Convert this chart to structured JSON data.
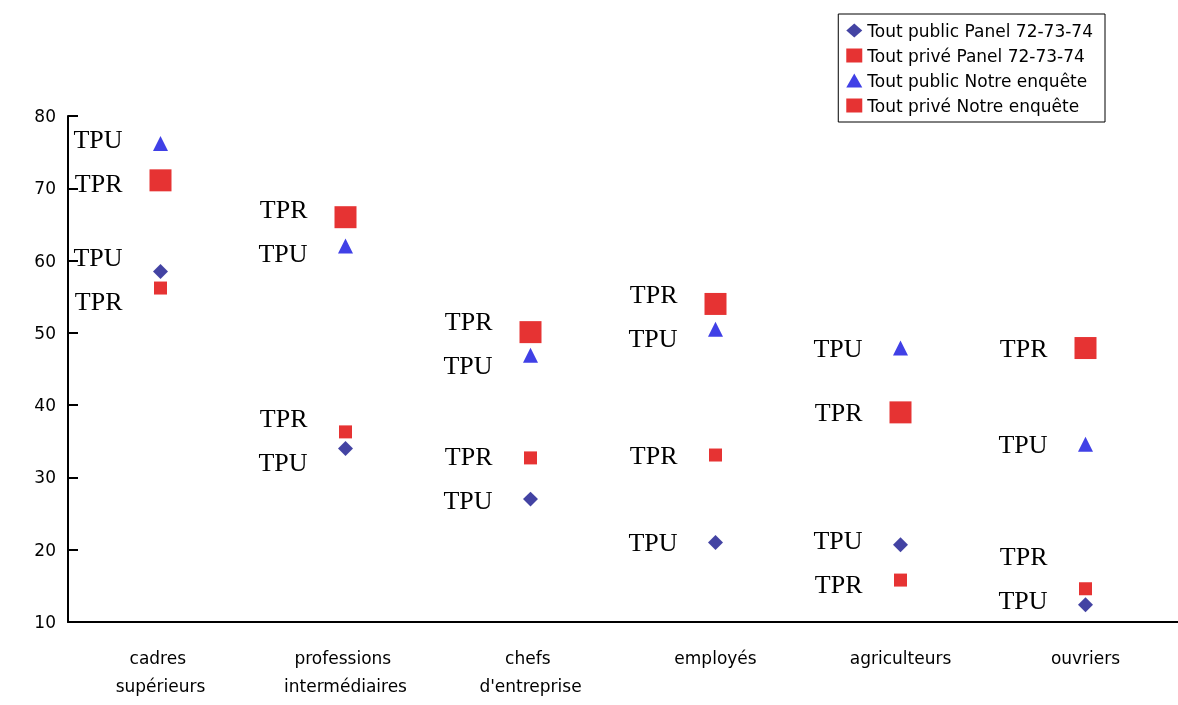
{
  "chart_data": {
    "type": "scatter",
    "categories": [
      "cadres supérieurs",
      "professions intermédiaires",
      "chefs d'entreprise",
      "employés",
      "agriculteurs",
      "ouvriers"
    ],
    "series": [
      {
        "name": "Tout public Panel 72-73-74",
        "color": "#14148c",
        "marker": "diamond",
        "values": [
          58.5,
          34,
          27,
          21,
          20.7,
          12.4
        ]
      },
      {
        "name": "Tout privé Panel 72-73-74",
        "color": "#e00000",
        "marker": "square",
        "values": [
          56.2,
          36.3,
          32.7,
          33.1,
          15.8,
          14.6
        ]
      },
      {
        "name": "Tout public Notre enquête",
        "color": "#1010e0",
        "marker": "triangle",
        "values": [
          76.2,
          62,
          46.9,
          50.5,
          47.9,
          34.6
        ]
      },
      {
        "name": "Tout privé Notre enquête",
        "color": "#e00000",
        "marker": "square",
        "values": [
          71.1,
          66,
          50.1,
          54,
          39,
          47.9
        ]
      }
    ],
    "ylim": [
      10,
      80
    ],
    "yticks": [
      10,
      20,
      30,
      40,
      50,
      60,
      70,
      80
    ],
    "grid": false,
    "legend": "top right",
    "annotations": [
      {
        "text": "TPU",
        "x": "cadres supérieurs",
        "y": 76.2
      },
      {
        "text": "TPR",
        "x": "cadres supérieurs",
        "y": 71.1
      },
      {
        "text": "TPU",
        "x": "cadres supérieurs",
        "y": 58.5
      },
      {
        "text": "TPR",
        "x": "cadres supérieurs",
        "y": 56.2
      },
      {
        "text": "TPR",
        "x": "professions intermédiaires",
        "y": 66
      },
      {
        "text": "TPU",
        "x": "professions intermédiaires",
        "y": 62
      },
      {
        "text": "TPR",
        "x": "professions intermédiaires",
        "y": 36.3
      },
      {
        "text": "TPU",
        "x": "professions intermédiaires",
        "y": 34
      },
      {
        "text": "TPR",
        "x": "chefs d'entreprise",
        "y": 50.1
      },
      {
        "text": "TPU",
        "x": "chefs d'entreprise",
        "y": 46.9
      },
      {
        "text": "TPR",
        "x": "chefs d'entreprise",
        "y": 32.7
      },
      {
        "text": "TPU",
        "x": "chefs d'entreprise",
        "y": 27
      },
      {
        "text": "TPR",
        "x": "employés",
        "y": 54
      },
      {
        "text": "TPU",
        "x": "employés",
        "y": 50.5
      },
      {
        "text": "TPR",
        "x": "employés",
        "y": 33.1
      },
      {
        "text": "TPU",
        "x": "employés",
        "y": 21
      },
      {
        "text": "TPU",
        "x": "agriculteurs",
        "y": 47.9
      },
      {
        "text": "TPR",
        "x": "agriculteurs",
        "y": 39
      },
      {
        "text": "TPU",
        "x": "agriculteurs",
        "y": 20.7
      },
      {
        "text": "TPR",
        "x": "agriculteurs",
        "y": 15.8
      },
      {
        "text": "TPR",
        "x": "ouvriers",
        "y": 47.9
      },
      {
        "text": "TPU",
        "x": "ouvriers",
        "y": 34.6
      },
      {
        "text": "TPR",
        "x": "ouvriers",
        "y": 14.6
      },
      {
        "text": "TPU",
        "x": "ouvriers",
        "y": 12.4
      }
    ]
  }
}
